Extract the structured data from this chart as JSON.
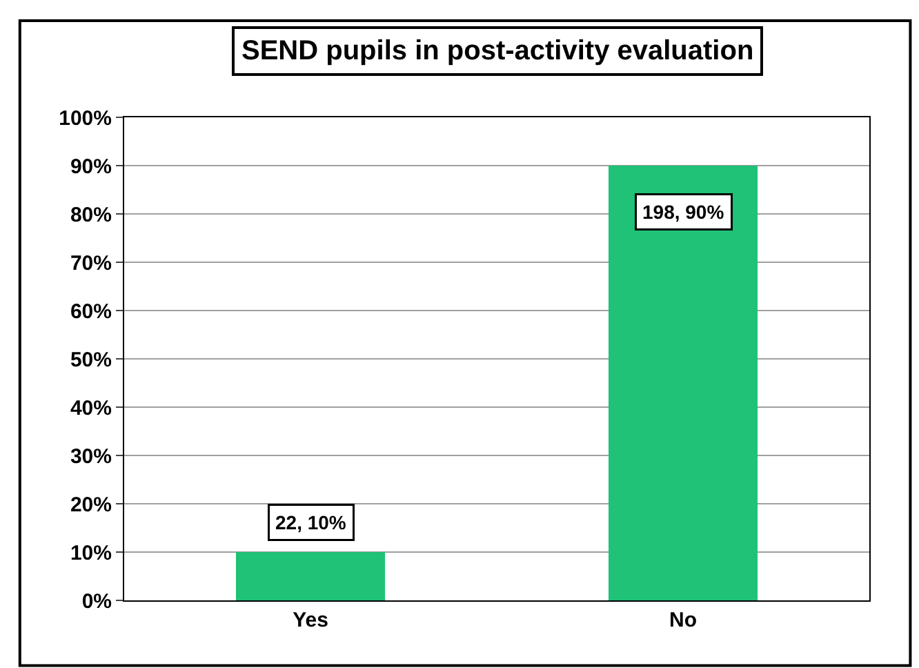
{
  "chart_data": {
    "type": "bar",
    "title": "SEND pupils in post-activity evaluation",
    "categories": [
      "Yes",
      "No"
    ],
    "values": [
      10,
      90
    ],
    "value_labels": [
      "22, 10%",
      "198, 90%"
    ],
    "color": "#1fc276",
    "ylim": [
      0,
      100
    ],
    "yticks": [
      {
        "value": 0,
        "label": "0%"
      },
      {
        "value": 10,
        "label": "10%"
      },
      {
        "value": 20,
        "label": "20%"
      },
      {
        "value": 30,
        "label": "30%"
      },
      {
        "value": 40,
        "label": "40%"
      },
      {
        "value": 50,
        "label": "50%"
      },
      {
        "value": 60,
        "label": "60%"
      },
      {
        "value": 70,
        "label": "70%"
      },
      {
        "value": 80,
        "label": "80%"
      },
      {
        "value": 90,
        "label": "90%"
      },
      {
        "value": 100,
        "label": "100%"
      }
    ],
    "grid": "y"
  }
}
